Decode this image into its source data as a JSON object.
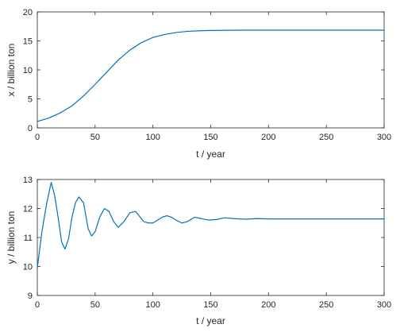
{
  "chart_data": [
    {
      "type": "line",
      "xlabel": "t / year",
      "ylabel": "x / billion ton",
      "xlim": [
        0,
        300
      ],
      "ylim": [
        0,
        20
      ],
      "xticks": [
        0,
        50,
        100,
        150,
        200,
        250,
        300
      ],
      "yticks": [
        0,
        5,
        10,
        15,
        20
      ],
      "grid": false,
      "line_color": "#0072BD",
      "series": [
        {
          "x": [
            0,
            10,
            20,
            30,
            40,
            50,
            60,
            70,
            80,
            90,
            100,
            110,
            120,
            130,
            140,
            150,
            175,
            200,
            250,
            300
          ],
          "y": [
            1.1,
            1.7,
            2.6,
            3.8,
            5.5,
            7.5,
            9.6,
            11.7,
            13.4,
            14.7,
            15.6,
            16.1,
            16.45,
            16.65,
            16.75,
            16.8,
            16.85,
            16.85,
            16.85,
            16.85
          ]
        }
      ]
    },
    {
      "type": "line",
      "xlabel": "t / year",
      "ylabel": "y / billion ton",
      "xlim": [
        0,
        300
      ],
      "ylim": [
        9,
        13
      ],
      "xticks": [
        0,
        50,
        100,
        150,
        200,
        250,
        300
      ],
      "yticks": [
        9,
        10,
        11,
        12,
        13
      ],
      "grid": false,
      "line_color": "#0072BD",
      "series": [
        {
          "x": [
            0,
            4,
            8,
            12,
            15,
            18,
            21,
            24,
            27,
            30,
            33,
            36,
            40,
            44,
            47,
            50,
            54,
            58,
            62,
            66,
            70,
            75,
            80,
            85,
            88,
            92,
            96,
            100,
            104,
            108,
            112,
            116,
            120,
            125,
            130,
            136,
            142,
            148,
            155,
            162,
            170,
            180,
            190,
            200,
            210,
            220,
            240,
            260,
            280,
            300
          ],
          "y": [
            9.95,
            11.2,
            12.15,
            12.9,
            12.45,
            11.7,
            10.85,
            10.6,
            10.95,
            11.7,
            12.2,
            12.4,
            12.2,
            11.3,
            11.05,
            11.2,
            11.7,
            12.0,
            11.9,
            11.55,
            11.35,
            11.55,
            11.85,
            11.9,
            11.75,
            11.55,
            11.5,
            11.5,
            11.6,
            11.7,
            11.75,
            11.7,
            11.6,
            11.5,
            11.55,
            11.7,
            11.65,
            11.6,
            11.62,
            11.68,
            11.65,
            11.63,
            11.65,
            11.64,
            11.64,
            11.64,
            11.64,
            11.64,
            11.64,
            11.64
          ]
        }
      ]
    }
  ]
}
